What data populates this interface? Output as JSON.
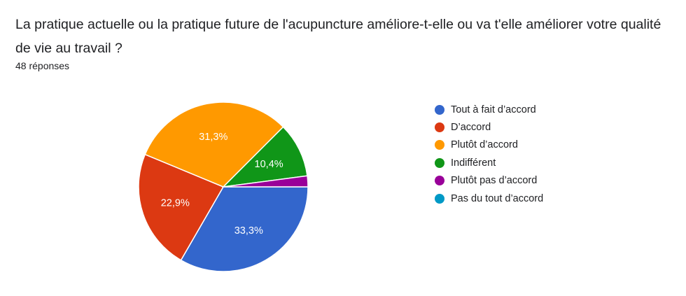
{
  "form": {
    "question": "La pratique actuelle ou la pratique future de l'acupuncture améliore-t-elle ou va t'elle améliorer votre qualité de vie au travail ?",
    "responses": "48 réponses"
  },
  "chart_data": {
    "type": "pie",
    "title": "",
    "categories": [
      "Tout à fait d’accord",
      "D’accord",
      "Plutôt d’accord",
      "Indifférent",
      "Plutôt pas d’accord",
      "Pas du tout d’accord"
    ],
    "values": [
      16,
      11,
      15,
      5,
      1,
      0
    ],
    "percent_labels": [
      "33,3%",
      "22,9%",
      "31,3%",
      "10,4%",
      "",
      ""
    ],
    "colors": [
      "#3366cc",
      "#dc3912",
      "#ff9900",
      "#109618",
      "#990099",
      "#0099c6"
    ],
    "legend_position": "right"
  }
}
